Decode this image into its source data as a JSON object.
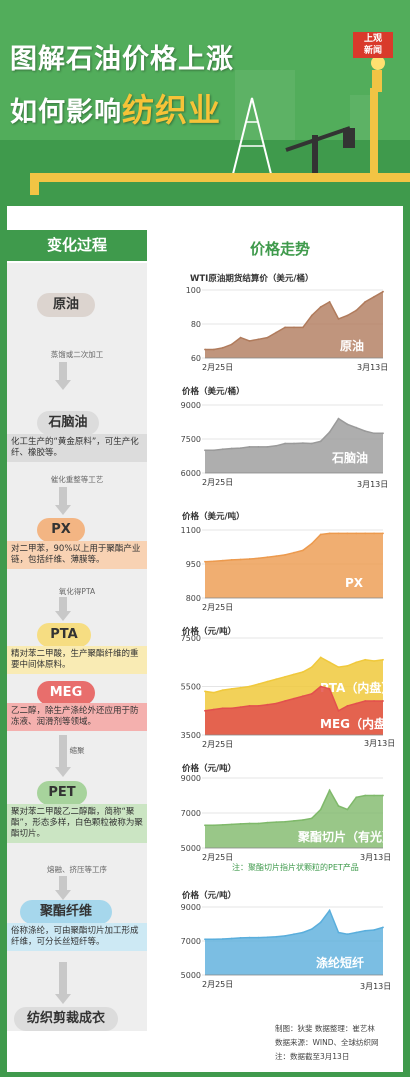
{
  "header": {
    "title_line1": "图解石油价格上涨",
    "title_line2_a": "如何影响",
    "title_line2_b": "纺织业",
    "logo_line1": "上观",
    "logo_line2": "新闻"
  },
  "left": {
    "header": "变化过程",
    "stages": [
      {
        "name": "原油",
        "desc": ""
      },
      {
        "name": "石脑油",
        "desc": "化工生产的“黄金原料”，可生产化纤、橡胶等。"
      },
      {
        "name": "PX",
        "desc": "对二甲苯，90%以上用于聚酯产业链，包括纤维、薄膜等。"
      },
      {
        "name": "PTA",
        "desc": "精对苯二甲酸，生产聚酯纤维的重要中间体原料。"
      },
      {
        "name": "MEG",
        "desc": "乙二醇，除生产涤纶外还应用于防冻液、润滑剂等领域。"
      },
      {
        "name": "PET",
        "desc": "聚对苯二甲酸乙二醇酯，简称“聚酯”，形态多样，白色颗粒被称为聚酯切片。"
      },
      {
        "name": "聚酯纤维",
        "desc": "俗称涤纶，可由聚酯切片加工形成纤维，可分长丝短纤等。"
      },
      {
        "name": "纺织剪裁成衣",
        "desc": ""
      }
    ],
    "processes": [
      "蒸馏或二次加工",
      "催化重整等工艺",
      "氧化得PTA",
      "缩聚",
      "熔融、挤压等工序"
    ]
  },
  "right": {
    "header": "价格走势",
    "note": "注：聚酯切片指片状颗粒的PET产品"
  },
  "footer": {
    "line1": "制图：狄斐  数据整理：崔艺林",
    "line2": "数据来源：WIND、全球纺织网",
    "line3": "注：数据截至3月13日"
  },
  "colors": {
    "green": "#3f9a4c",
    "brown": "#b07b5c",
    "gray": "#9a9a9a",
    "orange": "#ec9a4e",
    "red": "#e2504e",
    "yellow": "#f0c93c",
    "lime": "#7fb96a",
    "blue": "#5aaedc"
  },
  "chart_data": [
    {
      "type": "area",
      "title": "WTI原油期货结算价（美元/桶）",
      "ylim": [
        60,
        100
      ],
      "yticks": [
        60,
        80,
        100
      ],
      "xticks": [
        "2月25日",
        "3月13日"
      ],
      "series": [
        {
          "name": "原油",
          "color": "#b07b5c",
          "values": [
            65,
            65,
            66,
            68,
            72,
            70,
            71,
            72,
            75,
            78,
            78,
            78,
            85,
            90,
            93,
            83,
            85,
            88,
            93,
            96,
            99
          ]
        }
      ]
    },
    {
      "type": "area",
      "title": "价格（美元/桶）",
      "ylim": [
        6000,
        9000
      ],
      "yticks": [
        6000,
        7500,
        9000
      ],
      "xticks": [
        "2月25日",
        "3月13日"
      ],
      "series": [
        {
          "name": "石脑油",
          "color": "#9a9a9a",
          "values": [
            7000,
            7000,
            7050,
            7080,
            7100,
            7150,
            7150,
            7150,
            7200,
            7300,
            7300,
            7320,
            7300,
            7400,
            7800,
            8400,
            8150,
            8000,
            7850,
            7750,
            7750
          ]
        }
      ]
    },
    {
      "type": "area",
      "title": "价格（美元/吨）",
      "ylim": [
        800,
        1100
      ],
      "yticks": [
        800,
        950,
        1100
      ],
      "xticks": [
        "2月25日",
        ""
      ],
      "series": [
        {
          "name": "PX",
          "color": "#ec9a4e",
          "values": [
            960,
            962,
            965,
            968,
            970,
            972,
            975,
            980,
            985,
            990,
            1000,
            1010,
            1040,
            1080,
            1085,
            1085,
            1085,
            1085,
            1085,
            1085,
            1085
          ]
        }
      ]
    },
    {
      "type": "area",
      "title": "价格（元/吨）",
      "ylim": [
        3500,
        7500
      ],
      "yticks": [
        3500,
        5500,
        7500
      ],
      "xticks": [
        "2月25日",
        "3月13日"
      ],
      "series": [
        {
          "name": "PTA（内盘）",
          "color": "#f0c93c",
          "values": [
            5300,
            5250,
            5350,
            5400,
            5450,
            5500,
            5600,
            5700,
            5800,
            5900,
            6000,
            6100,
            6300,
            6700,
            6500,
            6300,
            6350,
            6500,
            6600,
            6550,
            6600
          ]
        },
        {
          "name": "MEG（内盘）",
          "color": "#e2504e",
          "values": [
            4500,
            4550,
            4600,
            4600,
            4650,
            4700,
            4700,
            4750,
            4800,
            4900,
            5000,
            5100,
            5200,
            5500,
            5400,
            4500,
            4700,
            4800,
            4900,
            4900,
            4900
          ]
        }
      ]
    },
    {
      "type": "area",
      "title": "价格（元/吨）",
      "ylim": [
        5000,
        9000
      ],
      "yticks": [
        5000,
        7000,
        9000
      ],
      "xticks": [
        "2月25日",
        "3月13日"
      ],
      "series": [
        {
          "name": "聚酯切片（有光）",
          "color": "#7fb96a",
          "values": [
            6300,
            6300,
            6320,
            6350,
            6380,
            6400,
            6400,
            6450,
            6480,
            6500,
            6550,
            6600,
            6700,
            7200,
            8300,
            7400,
            7200,
            7900,
            8000,
            8000,
            8000
          ]
        }
      ]
    },
    {
      "type": "area",
      "title": "价格（元/吨）",
      "ylim": [
        5000,
        9000
      ],
      "yticks": [
        5000,
        7000,
        9000
      ],
      "xticks": [
        "2月25日",
        "3月13日"
      ],
      "series": [
        {
          "name": "涤纶短纤",
          "color": "#5aaedc",
          "values": [
            7100,
            7100,
            7120,
            7150,
            7180,
            7200,
            7200,
            7220,
            7250,
            7300,
            7400,
            7500,
            7700,
            8100,
            8800,
            7500,
            7400,
            7500,
            7600,
            7650,
            7800
          ]
        }
      ]
    }
  ]
}
